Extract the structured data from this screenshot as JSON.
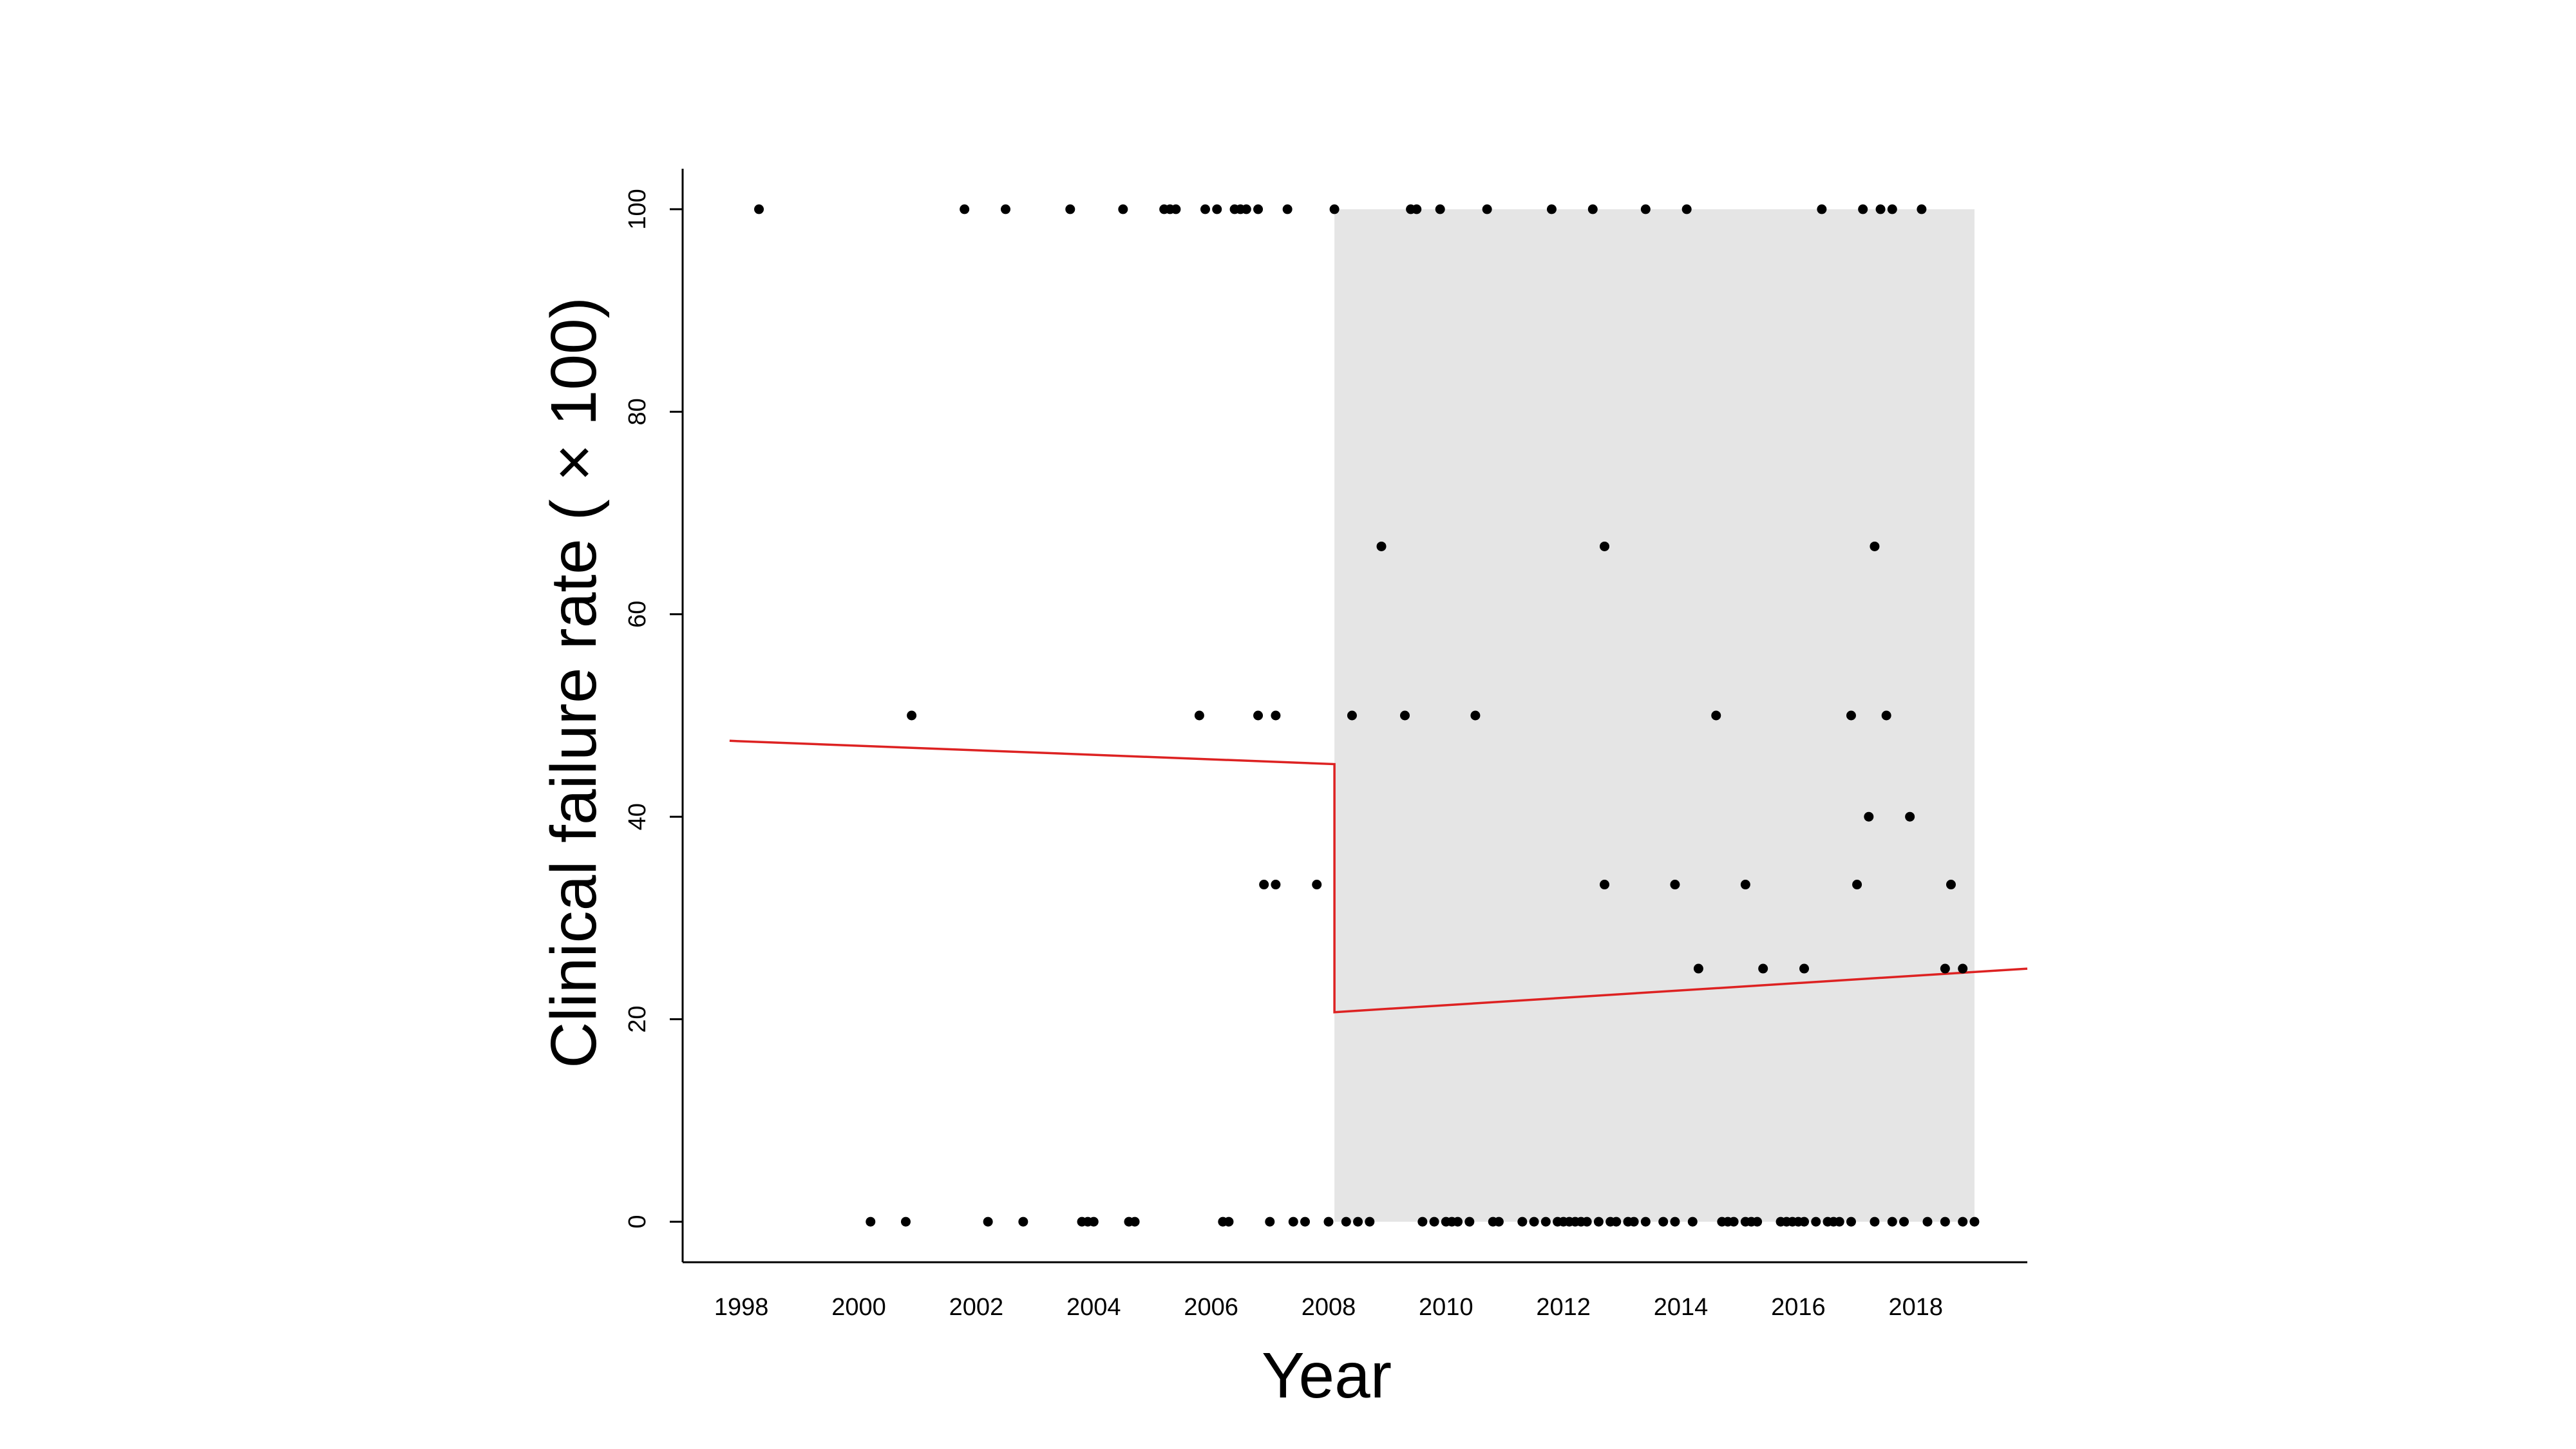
{
  "chart_data": {
    "type": "scatter",
    "title": "",
    "xlabel": "Year",
    "ylabel": "Clinical failure rate ( × 100)",
    "xlim": [
      1997.0,
      2019.9
    ],
    "ylim": [
      -4,
      104
    ],
    "x_ticks": [
      "1998",
      "2000",
      "2002",
      "2004",
      "2006",
      "2008",
      "2010",
      "2012",
      "2014",
      "2016",
      "2018"
    ],
    "y_ticks": [
      "0",
      "20",
      "40",
      "60",
      "80",
      "100"
    ],
    "grid": false,
    "legend": "none",
    "shaded_region": {
      "x_start": 2008.1,
      "x_end": 2019.0,
      "y_start": 0,
      "y_end": 100,
      "color": "#e5e5e5"
    },
    "colors": {
      "points": "#000000",
      "trend": "#dd2222",
      "shade": "#e5e5e5"
    },
    "trend_line": [
      {
        "x": 1997.8,
        "y": 47.5
      },
      {
        "x": 2008.1,
        "y": 45.2
      },
      {
        "x": 2008.1,
        "y": 20.7
      },
      {
        "x": 2019.9,
        "y": 25.0
      }
    ],
    "points": [
      {
        "x": 1998.3,
        "y": 100
      },
      {
        "x": 2001.8,
        "y": 100
      },
      {
        "x": 2002.5,
        "y": 100
      },
      {
        "x": 2003.6,
        "y": 100
      },
      {
        "x": 2004.5,
        "y": 100
      },
      {
        "x": 2005.2,
        "y": 100
      },
      {
        "x": 2005.3,
        "y": 100
      },
      {
        "x": 2005.4,
        "y": 100
      },
      {
        "x": 2005.9,
        "y": 100
      },
      {
        "x": 2006.1,
        "y": 100
      },
      {
        "x": 2006.4,
        "y": 100
      },
      {
        "x": 2006.5,
        "y": 100
      },
      {
        "x": 2006.6,
        "y": 100
      },
      {
        "x": 2006.8,
        "y": 100
      },
      {
        "x": 2007.3,
        "y": 100
      },
      {
        "x": 2008.1,
        "y": 100
      },
      {
        "x": 2009.4,
        "y": 100
      },
      {
        "x": 2009.5,
        "y": 100
      },
      {
        "x": 2009.9,
        "y": 100
      },
      {
        "x": 2010.7,
        "y": 100
      },
      {
        "x": 2011.8,
        "y": 100
      },
      {
        "x": 2012.5,
        "y": 100
      },
      {
        "x": 2013.4,
        "y": 100
      },
      {
        "x": 2014.1,
        "y": 100
      },
      {
        "x": 2016.4,
        "y": 100
      },
      {
        "x": 2017.1,
        "y": 100
      },
      {
        "x": 2017.4,
        "y": 100
      },
      {
        "x": 2017.6,
        "y": 100
      },
      {
        "x": 2018.1,
        "y": 100
      },
      {
        "x": 2008.9,
        "y": 66.7
      },
      {
        "x": 2012.7,
        "y": 66.7
      },
      {
        "x": 2017.3,
        "y": 66.7
      },
      {
        "x": 2000.9,
        "y": 50
      },
      {
        "x": 2005.8,
        "y": 50
      },
      {
        "x": 2006.8,
        "y": 50
      },
      {
        "x": 2007.1,
        "y": 50
      },
      {
        "x": 2008.4,
        "y": 50
      },
      {
        "x": 2009.3,
        "y": 50
      },
      {
        "x": 2010.5,
        "y": 50
      },
      {
        "x": 2014.6,
        "y": 50
      },
      {
        "x": 2016.9,
        "y": 50
      },
      {
        "x": 2017.5,
        "y": 50
      },
      {
        "x": 2017.2,
        "y": 40
      },
      {
        "x": 2017.9,
        "y": 40
      },
      {
        "x": 2006.9,
        "y": 33.3
      },
      {
        "x": 2007.1,
        "y": 33.3
      },
      {
        "x": 2007.8,
        "y": 33.3
      },
      {
        "x": 2012.7,
        "y": 33.3
      },
      {
        "x": 2013.9,
        "y": 33.3
      },
      {
        "x": 2015.1,
        "y": 33.3
      },
      {
        "x": 2017.0,
        "y": 33.3
      },
      {
        "x": 2018.6,
        "y": 33.3
      },
      {
        "x": 2014.3,
        "y": 25
      },
      {
        "x": 2015.4,
        "y": 25
      },
      {
        "x": 2016.1,
        "y": 25
      },
      {
        "x": 2018.5,
        "y": 25
      },
      {
        "x": 2018.8,
        "y": 25
      },
      {
        "x": 2000.2,
        "y": 0
      },
      {
        "x": 2000.8,
        "y": 0
      },
      {
        "x": 2002.2,
        "y": 0
      },
      {
        "x": 2002.8,
        "y": 0
      },
      {
        "x": 2003.8,
        "y": 0
      },
      {
        "x": 2003.9,
        "y": 0
      },
      {
        "x": 2004.0,
        "y": 0
      },
      {
        "x": 2004.6,
        "y": 0
      },
      {
        "x": 2004.7,
        "y": 0
      },
      {
        "x": 2006.2,
        "y": 0
      },
      {
        "x": 2006.3,
        "y": 0
      },
      {
        "x": 2007.0,
        "y": 0
      },
      {
        "x": 2007.4,
        "y": 0
      },
      {
        "x": 2007.6,
        "y": 0
      },
      {
        "x": 2008.0,
        "y": 0
      },
      {
        "x": 2008.3,
        "y": 0
      },
      {
        "x": 2008.5,
        "y": 0
      },
      {
        "x": 2008.7,
        "y": 0
      },
      {
        "x": 2009.6,
        "y": 0
      },
      {
        "x": 2009.8,
        "y": 0
      },
      {
        "x": 2010.0,
        "y": 0
      },
      {
        "x": 2010.1,
        "y": 0
      },
      {
        "x": 2010.2,
        "y": 0
      },
      {
        "x": 2010.4,
        "y": 0
      },
      {
        "x": 2010.8,
        "y": 0
      },
      {
        "x": 2010.9,
        "y": 0
      },
      {
        "x": 2011.3,
        "y": 0
      },
      {
        "x": 2011.5,
        "y": 0
      },
      {
        "x": 2011.7,
        "y": 0
      },
      {
        "x": 2011.9,
        "y": 0
      },
      {
        "x": 2012.0,
        "y": 0
      },
      {
        "x": 2012.1,
        "y": 0
      },
      {
        "x": 2012.2,
        "y": 0
      },
      {
        "x": 2012.3,
        "y": 0
      },
      {
        "x": 2012.4,
        "y": 0
      },
      {
        "x": 2012.6,
        "y": 0
      },
      {
        "x": 2012.8,
        "y": 0
      },
      {
        "x": 2012.9,
        "y": 0
      },
      {
        "x": 2013.1,
        "y": 0
      },
      {
        "x": 2013.2,
        "y": 0
      },
      {
        "x": 2013.4,
        "y": 0
      },
      {
        "x": 2013.7,
        "y": 0
      },
      {
        "x": 2013.9,
        "y": 0
      },
      {
        "x": 2014.2,
        "y": 0
      },
      {
        "x": 2014.7,
        "y": 0
      },
      {
        "x": 2014.8,
        "y": 0
      },
      {
        "x": 2014.9,
        "y": 0
      },
      {
        "x": 2015.1,
        "y": 0
      },
      {
        "x": 2015.2,
        "y": 0
      },
      {
        "x": 2015.3,
        "y": 0
      },
      {
        "x": 2015.7,
        "y": 0
      },
      {
        "x": 2015.8,
        "y": 0
      },
      {
        "x": 2015.9,
        "y": 0
      },
      {
        "x": 2016.0,
        "y": 0
      },
      {
        "x": 2016.1,
        "y": 0
      },
      {
        "x": 2016.3,
        "y": 0
      },
      {
        "x": 2016.5,
        "y": 0
      },
      {
        "x": 2016.6,
        "y": 0
      },
      {
        "x": 2016.7,
        "y": 0
      },
      {
        "x": 2016.9,
        "y": 0
      },
      {
        "x": 2017.3,
        "y": 0
      },
      {
        "x": 2017.6,
        "y": 0
      },
      {
        "x": 2017.8,
        "y": 0
      },
      {
        "x": 2018.2,
        "y": 0
      },
      {
        "x": 2018.5,
        "y": 0
      },
      {
        "x": 2018.8,
        "y": 0
      },
      {
        "x": 2019.0,
        "y": 0
      }
    ]
  }
}
